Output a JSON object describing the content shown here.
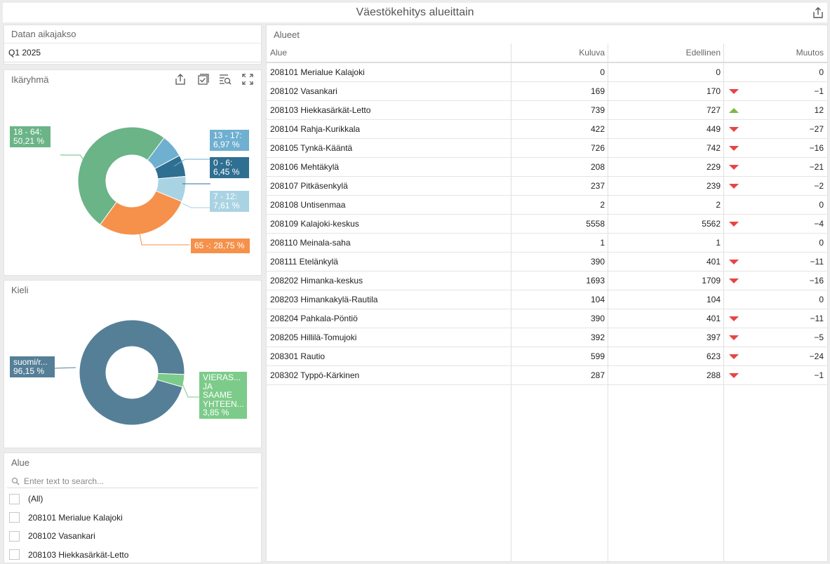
{
  "window": {
    "title": "Väestökehitys alueittain"
  },
  "period": {
    "title": "Datan aikajakso",
    "value": "Q1 2025"
  },
  "age": {
    "title": "Ikäryhmä",
    "labels": {
      "a18_64": "18 - 64:",
      "a18_64v": "50,21 %",
      "a13_17": "13 - 17:",
      "a13_17v": "6,97 %",
      "a0_6": "0 - 6:",
      "a0_6v": "6,45 %",
      "a7_12": "7 - 12:",
      "a7_12v": "7,61 %",
      "a65": "65 -: 28,75 %"
    },
    "chart_data": {
      "type": "pie",
      "categories": [
        "18 - 64",
        "13 - 17",
        "0 - 6",
        "7 - 12",
        "65 -"
      ],
      "values": [
        50.21,
        6.97,
        6.45,
        7.61,
        28.75
      ],
      "colors": [
        "#6ab487",
        "#6fafd0",
        "#2f6f91",
        "#a9d3e3",
        "#f5914a"
      ]
    }
  },
  "lang": {
    "title": "Kieli",
    "labels": {
      "fi": "suomi/r...",
      "fiv": "96,15 %",
      "f1": "VIERAS...",
      "f2": "JA",
      "f3": "SAAME",
      "f4": "YHTEEN...",
      "fv": "3,85 %"
    },
    "chart_data": {
      "type": "pie",
      "categories": [
        "suomi/r...",
        "VIERAS... JA SAAME YHTEEN..."
      ],
      "values": [
        96.15,
        3.85
      ],
      "colors": [
        "#557f97",
        "#7dcb8a"
      ]
    }
  },
  "area_filter": {
    "title": "Alue",
    "placeholder": "Enter text to search...",
    "items": [
      "(All)",
      "208101 Merialue Kalajoki",
      "208102 Vasankari",
      "208103 Hiekkasärkät-Letto"
    ]
  },
  "grid": {
    "title": "Alueet",
    "columns": [
      "Alue",
      "Kuluva",
      "Edellinen",
      "Muutos"
    ],
    "rows": [
      {
        "name": "208101 Merialue Kalajoki",
        "cur": "0",
        "prev": "0",
        "chg": "0",
        "dir": "none"
      },
      {
        "name": "208102 Vasankari",
        "cur": "169",
        "prev": "170",
        "chg": "−1",
        "dir": "down"
      },
      {
        "name": "208103 Hiekkasärkät-Letto",
        "cur": "739",
        "prev": "727",
        "chg": "12",
        "dir": "up"
      },
      {
        "name": "208104 Rahja-Kurikkala",
        "cur": "422",
        "prev": "449",
        "chg": "−27",
        "dir": "down"
      },
      {
        "name": "208105 Tynkä-Kääntä",
        "cur": "726",
        "prev": "742",
        "chg": "−16",
        "dir": "down"
      },
      {
        "name": "208106 Mehtäkylä",
        "cur": "208",
        "prev": "229",
        "chg": "−21",
        "dir": "down"
      },
      {
        "name": "208107 Pitkäsenkylä",
        "cur": "237",
        "prev": "239",
        "chg": "−2",
        "dir": "down"
      },
      {
        "name": "208108 Untisenmaa",
        "cur": "2",
        "prev": "2",
        "chg": "0",
        "dir": "none"
      },
      {
        "name": "208109 Kalajoki-keskus",
        "cur": "5558",
        "prev": "5562",
        "chg": "−4",
        "dir": "down"
      },
      {
        "name": "208110 Meinala-saha",
        "cur": "1",
        "prev": "1",
        "chg": "0",
        "dir": "none"
      },
      {
        "name": "208111 Etelänkylä",
        "cur": "390",
        "prev": "401",
        "chg": "−11",
        "dir": "down"
      },
      {
        "name": "208202 Himanka-keskus",
        "cur": "1693",
        "prev": "1709",
        "chg": "−16",
        "dir": "down"
      },
      {
        "name": "208203 Himankakylä-Rautila",
        "cur": "104",
        "prev": "104",
        "chg": "0",
        "dir": "none"
      },
      {
        "name": "208204 Pahkala-Pöntiö",
        "cur": "390",
        "prev": "401",
        "chg": "−11",
        "dir": "down"
      },
      {
        "name": "208205 Hillilä-Tomujoki",
        "cur": "392",
        "prev": "397",
        "chg": "−5",
        "dir": "down"
      },
      {
        "name": "208301 Rautio",
        "cur": "599",
        "prev": "623",
        "chg": "−24",
        "dir": "down"
      },
      {
        "name": "208302 Typpö-Kärkinen",
        "cur": "287",
        "prev": "288",
        "chg": "−1",
        "dir": "down"
      }
    ]
  }
}
